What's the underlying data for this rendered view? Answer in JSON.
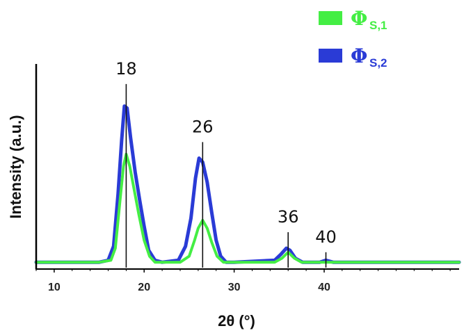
{
  "chart_data": {
    "type": "line",
    "xlabel": "2θ (°)",
    "ylabel": "Intensity (a.u.)",
    "xlim": [
      8,
      55
    ],
    "ylim": [
      0,
      1
    ],
    "xticks": [
      10,
      20,
      30,
      40
    ],
    "grid": false,
    "legend_position": "top-right",
    "series": [
      {
        "name": "Φ",
        "subscript": "S,1",
        "color": "#44ee44",
        "x": [
          8,
          12,
          15,
          16.3,
          16.8,
          17.3,
          17.7,
          18,
          18.4,
          18.9,
          19.4,
          20,
          20.6,
          21.2,
          22,
          24,
          25,
          25.6,
          26,
          26.5,
          27,
          27.5,
          28.1,
          28.8,
          30,
          34.5,
          35.3,
          36,
          36.7,
          37.5,
          40,
          55
        ],
        "values": [
          0.02,
          0.02,
          0.02,
          0.03,
          0.09,
          0.32,
          0.5,
          0.56,
          0.5,
          0.38,
          0.26,
          0.13,
          0.05,
          0.02,
          0.02,
          0.02,
          0.05,
          0.13,
          0.19,
          0.23,
          0.19,
          0.12,
          0.05,
          0.02,
          0.02,
          0.02,
          0.04,
          0.07,
          0.04,
          0.02,
          0.02,
          0.02
        ]
      },
      {
        "name": "Φ",
        "subscript": "S,2",
        "color": "#2a3bd6",
        "x": [
          8,
          12,
          15,
          16,
          16.6,
          17.1,
          17.5,
          17.8,
          18.1,
          18.5,
          19,
          19.5,
          20,
          20.5,
          21.2,
          22,
          23.8,
          24.6,
          25.2,
          25.7,
          26.1,
          26.5,
          27,
          27.5,
          28,
          28.5,
          29.1,
          30,
          34.5,
          35.2,
          35.8,
          36.2,
          36.8,
          37.6,
          39.5,
          40.2,
          41,
          55
        ],
        "values": [
          0.02,
          0.02,
          0.02,
          0.03,
          0.1,
          0.36,
          0.63,
          0.8,
          0.79,
          0.64,
          0.47,
          0.33,
          0.2,
          0.08,
          0.03,
          0.02,
          0.03,
          0.1,
          0.24,
          0.44,
          0.54,
          0.52,
          0.42,
          0.27,
          0.13,
          0.05,
          0.02,
          0.02,
          0.03,
          0.06,
          0.09,
          0.08,
          0.04,
          0.02,
          0.02,
          0.03,
          0.02,
          0.02
        ]
      }
    ],
    "annotations": [
      {
        "label": "18",
        "x": 18,
        "y": 0.91
      },
      {
        "label": "26",
        "x": 26.5,
        "y": 0.62
      },
      {
        "label": "36",
        "x": 36,
        "y": 0.17
      },
      {
        "label": "40",
        "x": 40.2,
        "y": 0.07
      }
    ]
  }
}
